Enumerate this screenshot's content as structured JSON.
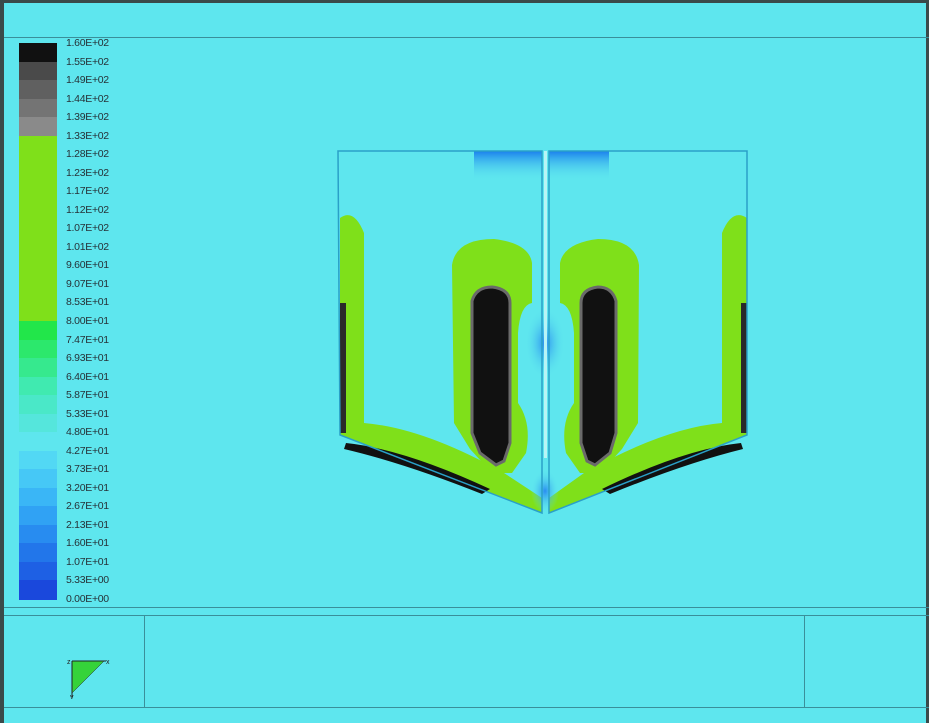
{
  "chart_data": {
    "type": "heatmap",
    "title": "",
    "xlabel": "",
    "ylabel": "",
    "colorbar": {
      "ticks": [
        "1.60E+02",
        "1.55E+02",
        "1.49E+02",
        "1.44E+02",
        "1.39E+02",
        "1.33E+02",
        "1.28E+02",
        "1.23E+02",
        "1.17E+02",
        "1.12E+02",
        "1.07E+02",
        "1.01E+02",
        "9.60E+01",
        "9.07E+01",
        "8.53E+01",
        "8.00E+01",
        "7.47E+01",
        "6.93E+01",
        "6.40E+01",
        "5.87E+01",
        "5.33E+01",
        "4.80E+01",
        "4.27E+01",
        "3.73E+01",
        "3.20E+01",
        "2.67E+01",
        "2.13E+01",
        "1.60E+01",
        "1.07E+01",
        "5.33E+00",
        "0.00E+00"
      ],
      "swatch_colors": [
        "#111111",
        "#4a4a4a",
        "#606060",
        "#747474",
        "#8a8a8a",
        "#7fe01a",
        "#7fe01a",
        "#7fe01a",
        "#7fe01a",
        "#7fe01a",
        "#7fe01a",
        "#7fe01a",
        "#7fe01a",
        "#7fe01a",
        "#7fe01a",
        "#22e64a",
        "#2ce86c",
        "#36e98e",
        "#40eab0",
        "#4ae8c8",
        "#55e6dc",
        "#5ee6ee",
        "#52d8f4",
        "#46c8f6",
        "#3ab6f6",
        "#30a2f4",
        "#288cf0",
        "#2276ea",
        "#1e60e4",
        "#1a48dc"
      ],
      "min": 0,
      "max": 160
    },
    "grid": false,
    "legend": "left"
  },
  "colors": {
    "background": "#5ee6ee",
    "green_band": "#7fe01a",
    "high": "#111111",
    "low": "#3a7fe6"
  },
  "triad": {
    "axis_labels": [
      "z",
      "x",
      "y"
    ]
  }
}
